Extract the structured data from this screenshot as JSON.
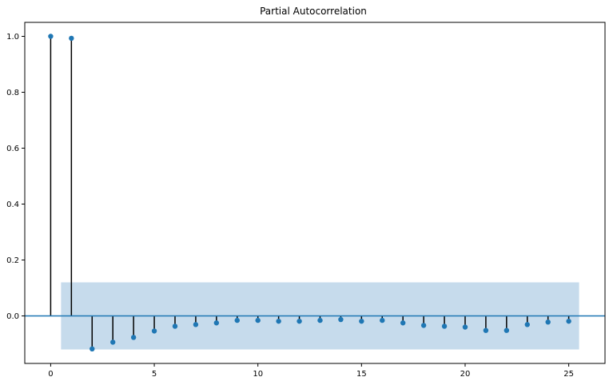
{
  "chart_data": {
    "type": "stem",
    "title": "Partial Autocorrelation",
    "xlabel": "",
    "ylabel": "",
    "xlim": [
      -1.25,
      26.75
    ],
    "ylim": [
      -0.17,
      1.05
    ],
    "x_ticks": [
      0,
      5,
      10,
      15,
      20,
      25
    ],
    "y_ticks": [
      -0.0,
      0.2,
      0.4,
      0.6,
      0.8,
      1.0
    ],
    "x_tick_labels": [
      "0",
      "5",
      "10",
      "15",
      "20",
      "25"
    ],
    "y_tick_labels": [
      "0.0",
      "0.2",
      "0.4",
      "0.6",
      "0.8",
      "1.0"
    ],
    "lags": [
      0,
      1,
      2,
      3,
      4,
      5,
      6,
      7,
      8,
      9,
      10,
      11,
      12,
      13,
      14,
      15,
      16,
      17,
      18,
      19,
      20,
      21,
      22,
      23,
      24,
      25
    ],
    "values": [
      1.0,
      0.993,
      -0.118,
      -0.094,
      -0.077,
      -0.054,
      -0.037,
      -0.031,
      -0.025,
      -0.016,
      -0.016,
      -0.019,
      -0.019,
      -0.016,
      -0.013,
      -0.019,
      -0.016,
      -0.025,
      -0.034,
      -0.037,
      -0.04,
      -0.052,
      -0.052,
      -0.031,
      -0.022,
      -0.019
    ],
    "confidence_interval": {
      "x_range": [
        0.5,
        25.5
      ],
      "upper": 0.12,
      "lower": -0.12
    },
    "grid": false,
    "colors": {
      "marker": "#1f77b4",
      "stem": "#000000",
      "baseline": "#1f77b4",
      "confidence_band": "#c6dbec",
      "axes": "#000000",
      "background": "#ffffff"
    }
  }
}
